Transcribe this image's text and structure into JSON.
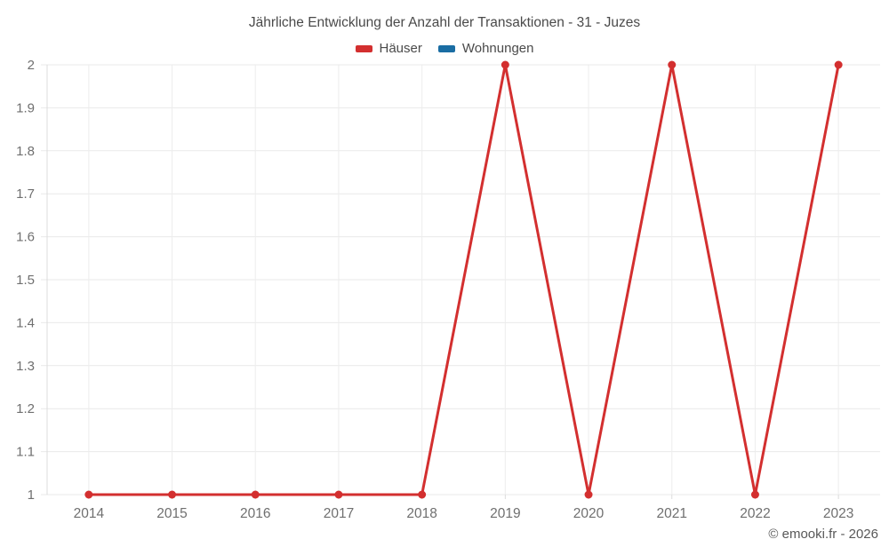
{
  "title": "Jährliche Entwicklung der Anzahl der Transaktionen - 31 - Juzes",
  "copyright": "© emooki.fr - 2026",
  "chart_data": {
    "type": "line",
    "title": "Jährliche Entwicklung der Anzahl der Transaktionen - 31 - Juzes",
    "categories": [
      "2014",
      "2015",
      "2016",
      "2017",
      "2018",
      "2019",
      "2020",
      "2021",
      "2022",
      "2023"
    ],
    "series": [
      {
        "name": "Häuser",
        "color": "#d32f2f",
        "values": [
          1,
          1,
          1,
          1,
          1,
          2,
          1,
          2,
          1,
          2
        ]
      },
      {
        "name": "Wohnungen",
        "color": "#1a6da3",
        "values": []
      }
    ],
    "xlabel": "",
    "ylabel": "",
    "ylim": [
      1,
      2
    ],
    "ytick_step": 0.1,
    "ytick_labels": [
      "1",
      "1.1",
      "1.2",
      "1.3",
      "1.4",
      "1.5",
      "1.6",
      "1.7",
      "1.8",
      "1.9",
      "2"
    ],
    "grid": true,
    "legend_position": "top"
  }
}
